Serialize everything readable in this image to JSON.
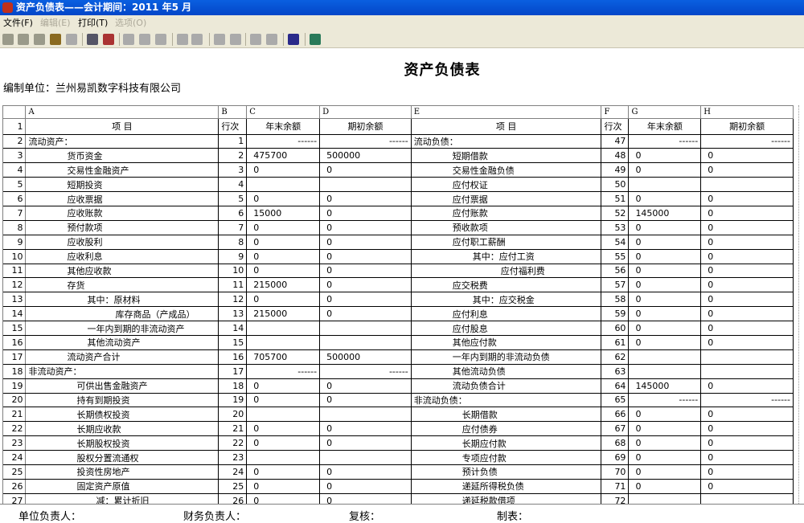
{
  "window": {
    "title": "资产负债表——会计期间：2011 年5 月"
  },
  "menu": [
    {
      "label": "文件(F)",
      "enabled": true
    },
    {
      "label": "编辑(E)",
      "enabled": false
    },
    {
      "label": "打印(T)",
      "enabled": true
    },
    {
      "label": "选项(O)",
      "enabled": false
    }
  ],
  "toolbar": {
    "icons": [
      "open-icon",
      "stop-icon",
      "run-icon",
      "find-icon",
      "save-icon",
      "print-icon",
      "print-preview-icon",
      "copy-icon",
      "paste-icon",
      "format-icon",
      "column-width-icon",
      "row-height-icon",
      "move-up-icon",
      "move-down-icon",
      "edit-icon",
      "check-icon",
      "calculator-icon",
      "exit-icon"
    ]
  },
  "report": {
    "title": "资产负债表",
    "org": "编制单位：兰州易凯数字科技有限公司"
  },
  "table": {
    "col_letters": [
      "A",
      "B",
      "C",
      "D",
      "E",
      "F",
      "G",
      "H"
    ],
    "header": {
      "item": "项    目",
      "line": "行次",
      "end": "年末余额",
      "begin": "期初余额"
    },
    "rows": [
      {
        "n": "2",
        "a": "流动资产：",
        "b": "1",
        "c": "------",
        "d": "------",
        "e": "流动负债：",
        "f": "47",
        "g": "------",
        "h": "------"
      },
      {
        "n": "3",
        "a": "货币资金",
        "b": "2",
        "c": "475700",
        "d": "500000",
        "e": "短期借款",
        "f": "48",
        "g": "0",
        "h": "0"
      },
      {
        "n": "4",
        "a": "交易性金融资产",
        "b": "3",
        "c": "0",
        "d": "0",
        "e": "交易性金融负债",
        "f": "49",
        "g": "0",
        "h": "0"
      },
      {
        "n": "5",
        "a": "短期投资",
        "b": "4",
        "c": "",
        "d": "",
        "e": "应付权证",
        "f": "50",
        "g": "",
        "h": ""
      },
      {
        "n": "6",
        "a": "应收票据",
        "b": "5",
        "c": "0",
        "d": "0",
        "e": "应付票据",
        "f": "51",
        "g": "0",
        "h": "0"
      },
      {
        "n": "7",
        "a": "应收账款",
        "b": "6",
        "c": "15000",
        "d": "0",
        "e": "应付账款",
        "f": "52",
        "g": "145000",
        "h": "0"
      },
      {
        "n": "8",
        "a": "预付款项",
        "b": "7",
        "c": "0",
        "d": "0",
        "e": "预收款项",
        "f": "53",
        "g": "0",
        "h": "0"
      },
      {
        "n": "9",
        "a": "应收股利",
        "b": "8",
        "c": "0",
        "d": "0",
        "e": "应付职工薪酬",
        "f": "54",
        "g": "0",
        "h": "0"
      },
      {
        "n": "10",
        "a": "应收利息",
        "b": "9",
        "c": "0",
        "d": "0",
        "e": "其中：应付工资",
        "f": "55",
        "g": "0",
        "h": "0"
      },
      {
        "n": "11",
        "a": "其他应收款",
        "b": "10",
        "c": "0",
        "d": "0",
        "e": "应付福利费",
        "f": "56",
        "g": "0",
        "h": "0"
      },
      {
        "n": "12",
        "a": "存货",
        "b": "11",
        "c": "215000",
        "d": "0",
        "e": "应交税费",
        "f": "57",
        "g": "0",
        "h": "0"
      },
      {
        "n": "13",
        "a": "其中：原材料",
        "b": "12",
        "c": "0",
        "d": "0",
        "e": "其中：应交税金",
        "f": "58",
        "g": "0",
        "h": "0"
      },
      {
        "n": "14",
        "a": "库存商品（产成品）",
        "b": "13",
        "c": "215000",
        "d": "0",
        "e": "应付利息",
        "f": "59",
        "g": "0",
        "h": "0"
      },
      {
        "n": "15",
        "a": "一年内到期的非流动资产",
        "b": "14",
        "c": "",
        "d": "",
        "e": "应付股息",
        "f": "60",
        "g": "0",
        "h": "0"
      },
      {
        "n": "16",
        "a": "其他流动资产",
        "b": "15",
        "c": "",
        "d": "",
        "e": "其他应付款",
        "f": "61",
        "g": "0",
        "h": "0"
      },
      {
        "n": "17",
        "a": "流动资产合计",
        "b": "16",
        "c": "705700",
        "d": "500000",
        "e": "一年内到期的非流动负债",
        "f": "62",
        "g": "",
        "h": ""
      },
      {
        "n": "18",
        "a": "非流动资产：",
        "b": "17",
        "c": "------",
        "d": "------",
        "e": "其他流动负债",
        "f": "63",
        "g": "",
        "h": ""
      },
      {
        "n": "19",
        "a": "可供出售金融资产",
        "b": "18",
        "c": "0",
        "d": "0",
        "e": "流动负债合计",
        "f": "64",
        "g": "145000",
        "h": "0"
      },
      {
        "n": "20",
        "a": "持有到期投资",
        "b": "19",
        "c": "0",
        "d": "0",
        "e": "非流动负债：",
        "f": "65",
        "g": "------",
        "h": "------"
      },
      {
        "n": "21",
        "a": "长期债权投资",
        "b": "20",
        "c": "",
        "d": "",
        "e": "长期借款",
        "f": "66",
        "g": "0",
        "h": "0"
      },
      {
        "n": "22",
        "a": "长期应收款",
        "b": "21",
        "c": "0",
        "d": "0",
        "e": "应付债券",
        "f": "67",
        "g": "0",
        "h": "0"
      },
      {
        "n": "23",
        "a": "长期股权投资",
        "b": "22",
        "c": "0",
        "d": "0",
        "e": "长期应付款",
        "f": "68",
        "g": "0",
        "h": "0"
      },
      {
        "n": "24",
        "a": "股权分置流通权",
        "b": "23",
        "c": "",
        "d": "",
        "e": "专项应付款",
        "f": "69",
        "g": "0",
        "h": "0"
      },
      {
        "n": "25",
        "a": "投资性房地产",
        "b": "24",
        "c": "0",
        "d": "0",
        "e": "预计负债",
        "f": "70",
        "g": "0",
        "h": "0"
      },
      {
        "n": "26",
        "a": "固定资产原值",
        "b": "25",
        "c": "0",
        "d": "0",
        "e": "递延所得税负债",
        "f": "71",
        "g": "0",
        "h": "0"
      },
      {
        "n": "27",
        "a": "减：累计折旧",
        "b": "26",
        "c": "0",
        "d": "0",
        "e": "递延税款借项",
        "f": "72",
        "g": "",
        "h": ""
      }
    ]
  },
  "footer": {
    "unit_head": "单位负责人：",
    "finance_head": "财务负责人：",
    "reviewer": "复核：",
    "preparer": "制表："
  }
}
